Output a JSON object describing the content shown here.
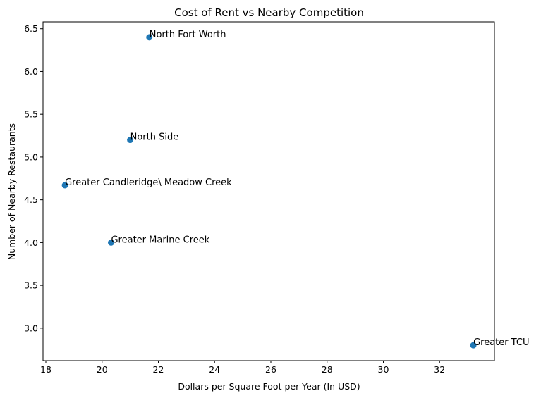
{
  "chart_data": {
    "type": "scatter",
    "title": "Cost of Rent vs Nearby Competition",
    "xlabel": "Dollars per Square Foot per Year (In USD)",
    "ylabel": "Number of Nearby Restaurants",
    "xlim": [
      17.9,
      33.95
    ],
    "ylim": [
      2.62,
      6.58
    ],
    "xticks": [
      18,
      20,
      22,
      24,
      26,
      28,
      30,
      32
    ],
    "yticks": [
      3.0,
      3.5,
      4.0,
      4.5,
      5.0,
      5.5,
      6.0,
      6.5
    ],
    "xtick_labels": [
      "18",
      "20",
      "22",
      "24",
      "26",
      "28",
      "30",
      "32"
    ],
    "ytick_labels": [
      "3.0",
      "3.5",
      "4.0",
      "4.5",
      "5.0",
      "5.5",
      "6.0",
      "6.5"
    ],
    "grid": false,
    "marker_color": "#1f77b4",
    "points": [
      {
        "x": 21.68,
        "y": 6.4,
        "label": "North Fort Worth"
      },
      {
        "x": 21.0,
        "y": 5.2,
        "label": "North Side"
      },
      {
        "x": 18.68,
        "y": 4.67,
        "label": "Greater Candleridge\\ Meadow Creek"
      },
      {
        "x": 20.32,
        "y": 4.0,
        "label": "Greater Marine Creek"
      },
      {
        "x": 33.2,
        "y": 2.8,
        "label": "Greater TCU"
      }
    ]
  }
}
